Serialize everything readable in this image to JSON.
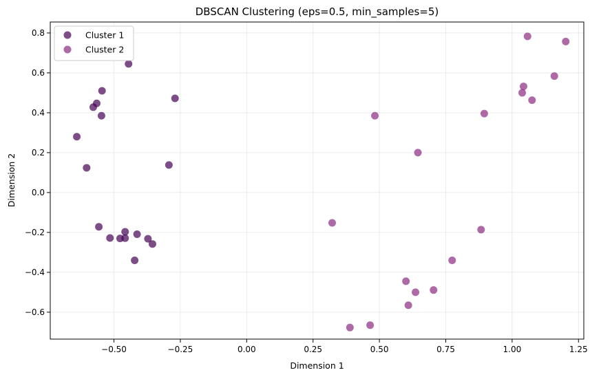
{
  "chart_data": {
    "type": "scatter",
    "title": "DBSCAN Clustering (eps=0.5, min_samples=5)",
    "xlabel": "Dimension 1",
    "ylabel": "Dimension 2",
    "xlim": [
      -0.74,
      1.27
    ],
    "ylim": [
      -0.735,
      0.855
    ],
    "xticks": [
      -0.5,
      -0.25,
      0.0,
      0.25,
      0.5,
      0.75,
      1.0,
      1.25
    ],
    "xtick_labels": [
      "−0.50",
      "−0.25",
      "0.00",
      "0.25",
      "0.50",
      "0.75",
      "1.00",
      "1.25"
    ],
    "yticks": [
      -0.6,
      -0.4,
      -0.2,
      0.0,
      0.2,
      0.4,
      0.6,
      0.8
    ],
    "ytick_labels": [
      "−0.6",
      "−0.4",
      "−0.2",
      "0.0",
      "0.2",
      "0.4",
      "0.6",
      "0.8"
    ],
    "grid": true,
    "legend_position": "top-left",
    "series": [
      {
        "name": "Cluster 1",
        "color": "#440154",
        "points": [
          [
            -0.445,
            0.645
          ],
          [
            -0.545,
            0.51
          ],
          [
            -0.565,
            0.447
          ],
          [
            -0.578,
            0.428
          ],
          [
            -0.547,
            0.385
          ],
          [
            -0.27,
            0.472
          ],
          [
            -0.64,
            0.28
          ],
          [
            -0.603,
            0.124
          ],
          [
            -0.293,
            0.138
          ],
          [
            -0.557,
            -0.172
          ],
          [
            -0.515,
            -0.228
          ],
          [
            -0.477,
            -0.23
          ],
          [
            -0.458,
            -0.229
          ],
          [
            -0.458,
            -0.197
          ],
          [
            -0.413,
            -0.209
          ],
          [
            -0.372,
            -0.232
          ],
          [
            -0.355,
            -0.258
          ],
          [
            -0.422,
            -0.34
          ]
        ]
      },
      {
        "name": "Cluster 2",
        "color": "#8c2981",
        "points": [
          [
            1.058,
            0.783
          ],
          [
            1.202,
            0.757
          ],
          [
            1.159,
            0.584
          ],
          [
            1.043,
            0.532
          ],
          [
            1.038,
            0.5
          ],
          [
            1.075,
            0.463
          ],
          [
            0.895,
            0.396
          ],
          [
            0.483,
            0.385
          ],
          [
            0.645,
            0.2
          ],
          [
            0.322,
            -0.152
          ],
          [
            0.883,
            -0.186
          ],
          [
            0.774,
            -0.34
          ],
          [
            0.6,
            -0.445
          ],
          [
            0.636,
            -0.5
          ],
          [
            0.704,
            -0.489
          ],
          [
            0.609,
            -0.565
          ],
          [
            0.389,
            -0.677
          ],
          [
            0.465,
            -0.665
          ]
        ]
      }
    ]
  }
}
